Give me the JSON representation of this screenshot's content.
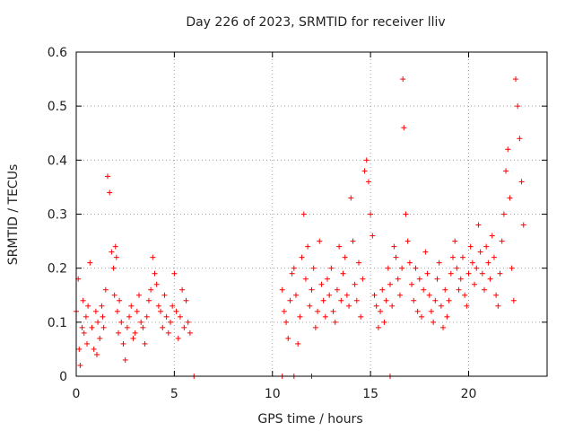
{
  "chart_data": {
    "type": "scatter",
    "title": "Day 226 of 2023, SRMTID for receiver lliv",
    "xlabel": "GPS time / hours",
    "ylabel": "SRMTID / TECUs",
    "xlim": [
      0,
      24
    ],
    "ylim": [
      0,
      0.6
    ],
    "xticks": [
      0,
      5,
      10,
      15,
      20
    ],
    "yticks": [
      0,
      0.1,
      0.2,
      0.3,
      0.4,
      0.5,
      0.6
    ],
    "ytick_labels": [
      "0",
      "0.1",
      "0.2",
      "0.3",
      "0.4",
      "0.5",
      "0.6"
    ],
    "grid": true,
    "marker": "+",
    "color": "#ff0000",
    "series": [
      {
        "name": "SRMTID",
        "x": [
          0.0,
          0.1,
          0.15,
          0.2,
          0.3,
          0.35,
          0.4,
          0.5,
          0.55,
          0.6,
          0.7,
          0.8,
          0.9,
          1.0,
          1.05,
          1.1,
          1.2,
          1.3,
          1.35,
          1.4,
          1.5,
          1.6,
          1.7,
          1.8,
          1.9,
          1.95,
          2.0,
          2.05,
          2.1,
          2.15,
          2.2,
          2.3,
          2.4,
          2.5,
          2.6,
          2.7,
          2.8,
          2.9,
          3.0,
          3.1,
          3.2,
          3.3,
          3.4,
          3.5,
          3.6,
          3.7,
          3.8,
          3.9,
          4.0,
          4.1,
          4.2,
          4.3,
          4.4,
          4.5,
          4.6,
          4.7,
          4.8,
          4.9,
          5.0,
          5.1,
          5.2,
          5.3,
          5.4,
          5.5,
          5.6,
          5.7,
          5.8,
          6.0,
          10.5,
          10.6,
          10.7,
          10.8,
          10.9,
          11.0,
          11.1,
          11.2,
          11.3,
          11.4,
          11.5,
          11.6,
          11.7,
          11.8,
          11.9,
          12.0,
          12.1,
          12.2,
          12.3,
          12.4,
          12.5,
          12.6,
          12.7,
          12.8,
          12.9,
          13.0,
          13.1,
          13.2,
          13.3,
          13.4,
          13.5,
          13.6,
          13.7,
          13.8,
          13.9,
          14.0,
          14.1,
          14.2,
          14.3,
          14.4,
          14.5,
          14.6,
          14.7,
          14.8,
          14.9,
          15.0,
          15.1,
          15.2,
          15.3,
          15.4,
          15.5,
          15.6,
          15.7,
          15.8,
          15.9,
          16.0,
          16.1,
          16.2,
          16.3,
          16.4,
          16.5,
          16.6,
          16.65,
          16.7,
          16.8,
          16.9,
          17.0,
          17.1,
          17.2,
          17.3,
          17.4,
          17.5,
          17.6,
          17.7,
          17.8,
          17.9,
          18.0,
          18.1,
          18.2,
          18.3,
          18.4,
          18.5,
          18.6,
          18.7,
          18.8,
          18.9,
          19.0,
          19.1,
          19.2,
          19.3,
          19.4,
          19.5,
          19.6,
          19.7,
          19.8,
          19.9,
          20.0,
          20.1,
          20.2,
          20.3,
          20.4,
          20.5,
          20.6,
          20.7,
          20.8,
          20.9,
          21.0,
          21.1,
          21.2,
          21.3,
          21.4,
          21.5,
          21.6,
          21.7,
          21.8,
          21.9,
          22.0,
          22.1,
          22.2,
          22.3,
          22.4,
          22.5,
          22.6,
          22.7,
          22.8,
          10.5,
          11.1,
          12.0,
          16.0
        ],
        "y": [
          0.12,
          0.18,
          0.05,
          0.02,
          0.09,
          0.14,
          0.08,
          0.11,
          0.06,
          0.13,
          0.21,
          0.09,
          0.05,
          0.12,
          0.04,
          0.1,
          0.07,
          0.13,
          0.11,
          0.09,
          0.16,
          0.37,
          0.34,
          0.23,
          0.2,
          0.15,
          0.24,
          0.22,
          0.12,
          0.08,
          0.14,
          0.1,
          0.06,
          0.03,
          0.09,
          0.11,
          0.13,
          0.07,
          0.08,
          0.12,
          0.15,
          0.1,
          0.09,
          0.06,
          0.11,
          0.14,
          0.16,
          0.22,
          0.19,
          0.17,
          0.13,
          0.12,
          0.09,
          0.15,
          0.11,
          0.08,
          0.1,
          0.13,
          0.19,
          0.12,
          0.07,
          0.11,
          0.16,
          0.09,
          0.14,
          0.1,
          0.08,
          0.0,
          0.16,
          0.12,
          0.1,
          0.07,
          0.14,
          0.19,
          0.2,
          0.15,
          0.06,
          0.11,
          0.22,
          0.3,
          0.18,
          0.24,
          0.13,
          0.16,
          0.2,
          0.09,
          0.12,
          0.25,
          0.17,
          0.14,
          0.11,
          0.18,
          0.15,
          0.2,
          0.12,
          0.1,
          0.16,
          0.24,
          0.14,
          0.19,
          0.22,
          0.15,
          0.13,
          0.33,
          0.25,
          0.17,
          0.14,
          0.21,
          0.11,
          0.18,
          0.38,
          0.4,
          0.36,
          0.3,
          0.26,
          0.15,
          0.13,
          0.09,
          0.12,
          0.16,
          0.1,
          0.14,
          0.2,
          0.17,
          0.13,
          0.24,
          0.22,
          0.18,
          0.15,
          0.2,
          0.55,
          0.46,
          0.3,
          0.25,
          0.21,
          0.17,
          0.14,
          0.2,
          0.12,
          0.18,
          0.11,
          0.16,
          0.23,
          0.19,
          0.15,
          0.12,
          0.1,
          0.14,
          0.18,
          0.21,
          0.13,
          0.09,
          0.16,
          0.11,
          0.14,
          0.19,
          0.22,
          0.25,
          0.2,
          0.16,
          0.18,
          0.22,
          0.15,
          0.13,
          0.19,
          0.24,
          0.21,
          0.17,
          0.2,
          0.28,
          0.23,
          0.19,
          0.16,
          0.24,
          0.21,
          0.18,
          0.26,
          0.22,
          0.15,
          0.13,
          0.19,
          0.25,
          0.3,
          0.38,
          0.42,
          0.33,
          0.2,
          0.14,
          0.55,
          0.5,
          0.44,
          0.36,
          0.28,
          0.0,
          0.0,
          0.0,
          0.0
        ]
      }
    ]
  }
}
